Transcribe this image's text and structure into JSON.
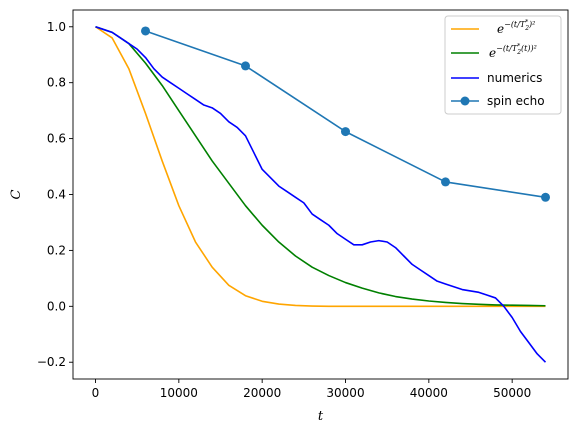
{
  "chart_data": {
    "type": "line",
    "xlabel": "t",
    "ylabel": "C",
    "xlim": [
      -2700,
      56700
    ],
    "ylim": [
      -0.26,
      1.06
    ],
    "x_ticks": [
      0,
      10000,
      20000,
      30000,
      40000,
      50000
    ],
    "x_tick_labels": [
      "0",
      "10000",
      "20000",
      "30000",
      "40000",
      "50000"
    ],
    "y_ticks": [
      -0.2,
      0.0,
      0.2,
      0.4,
      0.6,
      0.8,
      1.0
    ],
    "y_tick_labels": [
      "−0.2",
      "0.0",
      "0.2",
      "0.4",
      "0.6",
      "0.8",
      "1.0"
    ],
    "grid": false,
    "legend_position": "top-right",
    "series": [
      {
        "name": "e^{-(t/T_2^*)^2}",
        "legend_base": "e",
        "legend_exponent": "−(t/T",
        "legend_sub": "2",
        "legend_sup": "*",
        "legend_tail": ")²",
        "color": "#ffa500",
        "style": "line",
        "x": [
          0,
          2000,
          4000,
          6000,
          8000,
          10000,
          12000,
          14000,
          16000,
          18000,
          20000,
          22000,
          24000,
          26000,
          28000,
          30000,
          35000,
          40000,
          45000,
          50000,
          54000
        ],
        "y": [
          1.0,
          0.96,
          0.85,
          0.69,
          0.52,
          0.36,
          0.23,
          0.14,
          0.075,
          0.038,
          0.018,
          0.008,
          0.003,
          0.001,
          0.0,
          0.0,
          0.0,
          0.0,
          0.0,
          0.0,
          0.0
        ]
      },
      {
        "name": "e^{-(t/T_2^*(t))^2}",
        "legend_base": "e",
        "legend_exponent": "−(t/T",
        "legend_sub": "2",
        "legend_sup": "*",
        "legend_tail": "(t))²",
        "color": "#008000",
        "style": "line",
        "x": [
          0,
          2000,
          4000,
          6000,
          8000,
          10000,
          12000,
          14000,
          16000,
          18000,
          20000,
          22000,
          24000,
          26000,
          28000,
          30000,
          32000,
          34000,
          36000,
          38000,
          40000,
          42000,
          44000,
          46000,
          48000,
          50000,
          52000,
          54000
        ],
        "y": [
          1.0,
          0.98,
          0.94,
          0.87,
          0.79,
          0.7,
          0.61,
          0.52,
          0.44,
          0.36,
          0.29,
          0.23,
          0.18,
          0.14,
          0.11,
          0.085,
          0.065,
          0.048,
          0.035,
          0.026,
          0.019,
          0.014,
          0.01,
          0.007,
          0.005,
          0.004,
          0.003,
          0.002
        ]
      },
      {
        "name": "numerics",
        "color": "#0000ff",
        "style": "line",
        "x": [
          0,
          1000,
          2000,
          3000,
          4000,
          5000,
          6000,
          7000,
          8000,
          9000,
          10000,
          11000,
          12000,
          13000,
          14000,
          15000,
          16000,
          17000,
          18000,
          19000,
          20000,
          21000,
          22000,
          23000,
          24000,
          25000,
          26000,
          27000,
          28000,
          29000,
          30000,
          31000,
          32000,
          33000,
          34000,
          35000,
          36000,
          37000,
          38000,
          39000,
          40000,
          41000,
          42000,
          43000,
          44000,
          45000,
          46000,
          47000,
          48000,
          49000,
          50000,
          51000,
          52000,
          53000,
          54000
        ],
        "y": [
          1.0,
          0.99,
          0.98,
          0.96,
          0.94,
          0.92,
          0.89,
          0.85,
          0.82,
          0.8,
          0.78,
          0.76,
          0.74,
          0.72,
          0.71,
          0.69,
          0.66,
          0.64,
          0.61,
          0.55,
          0.49,
          0.46,
          0.43,
          0.41,
          0.39,
          0.37,
          0.33,
          0.31,
          0.29,
          0.26,
          0.24,
          0.22,
          0.22,
          0.23,
          0.235,
          0.23,
          0.21,
          0.18,
          0.15,
          0.13,
          0.11,
          0.09,
          0.08,
          0.07,
          0.06,
          0.055,
          0.05,
          0.04,
          0.03,
          0.0,
          -0.04,
          -0.09,
          -0.13,
          -0.17,
          -0.2
        ]
      },
      {
        "name": "spin echo",
        "color": "#1f77b4",
        "style": "line-marker",
        "x": [
          6000,
          18000,
          30000,
          42000,
          54000
        ],
        "y": [
          0.985,
          0.86,
          0.625,
          0.445,
          0.39
        ]
      }
    ]
  }
}
